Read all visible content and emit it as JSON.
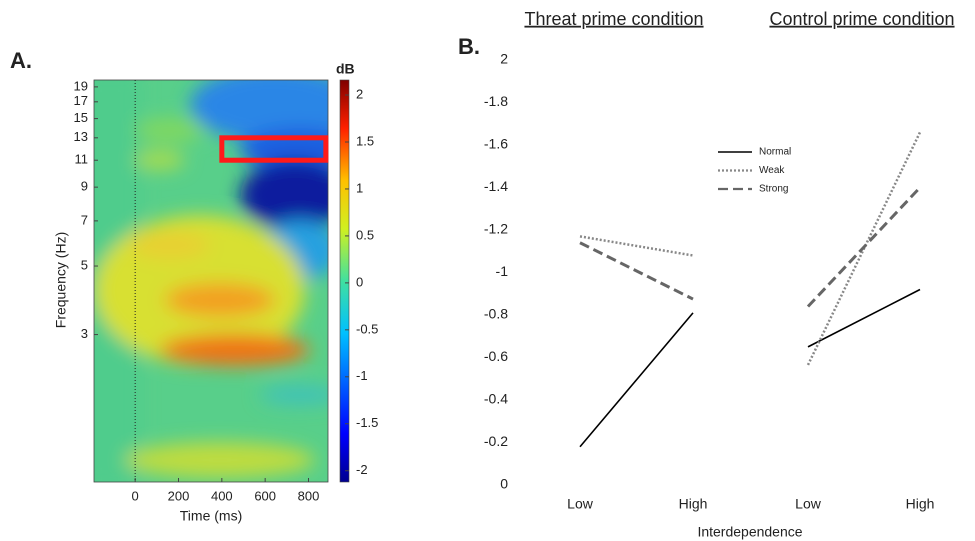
{
  "chart_data": [
    {
      "type": "heatmap",
      "label": "A.",
      "xlabel": "Time (ms)",
      "ylabel": "Frequency (Hz)",
      "colorbar_label": "dB",
      "xlim": [
        -190,
        890
      ],
      "xticks": [
        0,
        200,
        400,
        600,
        800
      ],
      "ylim": [
        1,
        20
      ],
      "log_y": true,
      "yticks": [
        3,
        5,
        7,
        9,
        11,
        13,
        15,
        17,
        19
      ],
      "clim": [
        -2.12,
        2.16
      ],
      "cticks": [
        -2,
        -1.5,
        -1,
        -0.5,
        0,
        0.5,
        1,
        1.5,
        2
      ],
      "colormap": "jet",
      "vline": 0,
      "highlight": {
        "x": [
          400,
          880
        ],
        "y": [
          11,
          13
        ],
        "color": "#ff1a1a"
      }
    },
    {
      "type": "line",
      "label": "B.",
      "xlabel": "Interdependence",
      "ylim": [
        0,
        -2
      ],
      "yticks": [
        0,
        -0.2,
        -0.4,
        -0.6,
        -0.8,
        -1,
        -1.2,
        -1.4,
        -1.6,
        -1.8,
        {
          "value": -2,
          "label": "2"
        }
      ],
      "panels": [
        {
          "title": "Threat prime condition",
          "categories": [
            "Low",
            "High"
          ]
        },
        {
          "title": "Control prime condition",
          "categories": [
            "Low",
            "High"
          ]
        }
      ],
      "series": [
        {
          "name": "Normal",
          "color": "#000000",
          "style": "solid",
          "values": [
            [
              -0.18,
              -0.81
            ],
            [
              -0.65,
              -0.92
            ]
          ]
        },
        {
          "name": "Weak",
          "color": "#888888",
          "style": "dotted",
          "values": [
            [
              -1.17,
              -1.08
            ],
            [
              -0.565,
              -1.66
            ]
          ]
        },
        {
          "name": "Strong",
          "color": "#666666",
          "style": "dashed",
          "values": [
            [
              -1.14,
              -0.875
            ],
            [
              -0.84,
              -1.4
            ]
          ]
        }
      ],
      "legend": "upper center"
    }
  ]
}
